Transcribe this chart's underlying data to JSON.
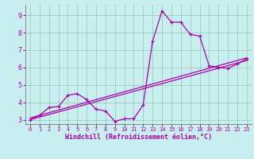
{
  "title": "",
  "xlabel": "Windchill (Refroidissement éolien,°C)",
  "ylabel": "",
  "bg_color": "#c8eef0",
  "line_color": "#aa00aa",
  "grid_color": "#99ccbb",
  "xlim": [
    -0.5,
    23.5
  ],
  "ylim": [
    2.75,
    9.6
  ],
  "xticks": [
    0,
    1,
    2,
    3,
    4,
    5,
    6,
    7,
    8,
    9,
    10,
    11,
    12,
    13,
    14,
    15,
    16,
    17,
    18,
    19,
    20,
    21,
    22,
    23
  ],
  "yticks": [
    3,
    4,
    5,
    6,
    7,
    8,
    9
  ],
  "curve1_x": [
    0,
    1,
    2,
    3,
    4,
    5,
    6,
    7,
    8,
    9,
    10,
    11,
    12,
    13,
    14,
    15,
    16,
    17,
    18,
    19,
    20,
    21,
    22,
    23
  ],
  "curve1_y": [
    3.0,
    3.25,
    3.7,
    3.75,
    4.4,
    4.5,
    4.15,
    3.6,
    3.5,
    2.9,
    3.05,
    3.05,
    3.85,
    7.5,
    9.25,
    8.6,
    8.6,
    7.9,
    7.8,
    6.1,
    6.0,
    5.95,
    6.2,
    6.5
  ],
  "curve2_x": [
    0,
    23
  ],
  "curve2_y": [
    3.0,
    6.4
  ],
  "curve3_x": [
    0,
    23
  ],
  "curve3_y": [
    3.1,
    6.55
  ]
}
